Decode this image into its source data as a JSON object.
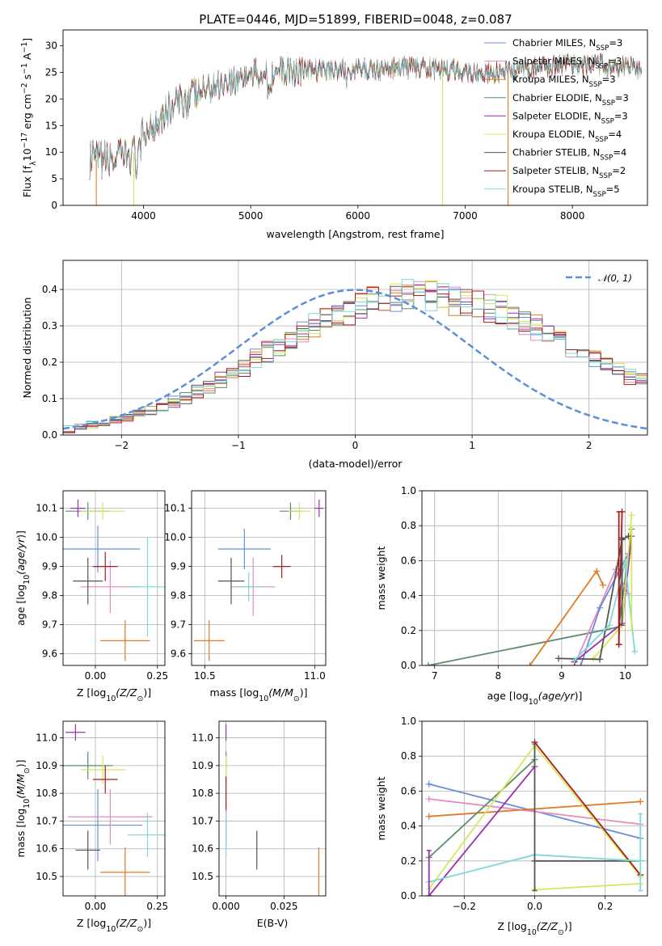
{
  "title": "PLATE=0446, MJD=51899, FIBERID=0048, z=0.087",
  "colors": {
    "chabrier_miles": "#6a8ed8",
    "salpeter_miles": "#e48cbc",
    "kroupa_miles": "#e07b28",
    "chabrier_elodie": "#5e8a6a",
    "salpeter_elodie": "#9b30b0",
    "kroupa_elodie": "#d4e85a",
    "chabrier_stelib": "#555555",
    "salpeter_stelib": "#a81c1c",
    "kroupa_stelib": "#7ed8d8"
  },
  "chart_data": [
    {
      "id": "spectrum",
      "type": "line",
      "title": "PLATE=0446, MJD=51899, FIBERID=0048, z=0.087",
      "xlabel": "wavelength [Angstrom, rest frame]",
      "ylabel": "Flux [f_λ 10^-17 erg cm^-2 s^-1 A^-1]",
      "xlim": [
        3250,
        8700
      ],
      "ylim": [
        0,
        33
      ],
      "xticks": [
        4000,
        5000,
        6000,
        7000,
        8000
      ],
      "yticks": [
        0,
        5,
        10,
        15,
        20,
        25,
        30
      ],
      "legend_position": "right",
      "continuum": {
        "x": [
          3500,
          3700,
          3900,
          4000,
          4200,
          4400,
          4600,
          4800,
          5000,
          5200,
          5400,
          5600,
          5800,
          6000,
          6200,
          6400,
          6600,
          6800,
          7000,
          7200,
          7400,
          7600,
          7800,
          8000,
          8200,
          8400,
          8600
        ],
        "y": [
          8.5,
          8.5,
          9.5,
          13.5,
          17.5,
          20.0,
          22.0,
          23.5,
          24.5,
          25.0,
          25.3,
          25.5,
          25.6,
          25.5,
          25.6,
          25.8,
          25.8,
          25.6,
          25.2,
          24.8,
          25.0,
          25.8,
          26.2,
          26.4,
          26.5,
          26.2,
          25.8
        ]
      },
      "series": [
        {
          "name": "Chabrier MILES, N_SSP=3",
          "legend": [
            "Chabrier MILES, N",
            "SSP",
            "=3"
          ],
          "color": "#6a8ed8"
        },
        {
          "name": "Salpeter MILES, N_SSP=3",
          "legend": [
            "Salpeter MILES, N",
            "SSP",
            "=3"
          ],
          "color": "#e48cbc"
        },
        {
          "name": "Kroupa MILES, N_SSP=3",
          "legend": [
            "Kroupa MILES, N",
            "SSP",
            "=3"
          ],
          "color": "#e07b28"
        },
        {
          "name": "Chabrier ELODIE, N_SSP=3",
          "legend": [
            "Chabrier ELODIE, N",
            "SSP",
            "=3"
          ],
          "color": "#5e8a6a"
        },
        {
          "name": "Salpeter ELODIE, N_SSP=3",
          "legend": [
            "Salpeter ELODIE, N",
            "SSP",
            "=3"
          ],
          "color": "#9b30b0"
        },
        {
          "name": "Kroupa ELODIE, N_SSP=4",
          "legend": [
            "Kroupa ELODIE, N",
            "SSP",
            "=4"
          ],
          "color": "#d4e85a"
        },
        {
          "name": "Chabrier STELIB, N_SSP=4",
          "legend": [
            "Chabrier STELIB, N",
            "SSP",
            "=4"
          ],
          "color": "#555555"
        },
        {
          "name": "Salpeter STELIB, N_SSP=2",
          "legend": [
            "Salpeter STELIB, N",
            "SSP",
            "=2"
          ],
          "color": "#a81c1c"
        },
        {
          "name": "Kroupa STELIB, N_SSP=5",
          "legend": [
            "Kroupa STELIB, N",
            "SSP",
            "=5"
          ],
          "color": "#7ed8d8"
        }
      ],
      "drops": [
        {
          "x": 3560,
          "color": "#e07b28"
        },
        {
          "x": 3910,
          "color": "#d4e85a"
        },
        {
          "x": 6790,
          "color": "#d4e85a"
        },
        {
          "x": 7400,
          "color": "#e07b28"
        }
      ]
    },
    {
      "id": "residuals",
      "type": "histogram",
      "xlabel": "(data-model)/error",
      "ylabel": "Normed distribution",
      "xlim": [
        -2.5,
        2.5
      ],
      "ylim": [
        0,
        0.48
      ],
      "xticks": [
        -2,
        -1,
        0,
        1,
        2
      ],
      "yticks": [
        0.0,
        0.1,
        0.2,
        0.3,
        0.4
      ],
      "grid": true,
      "legend_position": "top-right",
      "legend": "N(0,1)",
      "gaussian_color": "#5b8fd8",
      "bin_width": 0.1,
      "bin_start": -2.5,
      "base": [
        0.018,
        0.022,
        0.027,
        0.033,
        0.04,
        0.047,
        0.056,
        0.066,
        0.078,
        0.09,
        0.104,
        0.119,
        0.136,
        0.153,
        0.171,
        0.19,
        0.209,
        0.228,
        0.247,
        0.266,
        0.284,
        0.301,
        0.317,
        0.332,
        0.345,
        0.356,
        0.366,
        0.374,
        0.38,
        0.384,
        0.386,
        0.385,
        0.382,
        0.377,
        0.37,
        0.361,
        0.35,
        0.338,
        0.325,
        0.311,
        0.296,
        0.28,
        0.263,
        0.246,
        0.229,
        0.212,
        0.195,
        0.179,
        0.163,
        0.148,
        0.134,
        0.12,
        0.107,
        0.096,
        0.085,
        0.075,
        0.066,
        0.058,
        0.051,
        0.045
      ]
    },
    {
      "id": "age_vs_Z",
      "type": "errorbar",
      "xlabel": "Z [log10(Z/Z⊙)]",
      "ylabel": "age  [log10(age/yr)]",
      "xlim": [
        -0.13,
        0.28
      ],
      "ylim": [
        9.56,
        10.16
      ],
      "xticks": [
        0.0,
        0.25
      ],
      "xticklabels": [
        "0.00",
        "0.25"
      ],
      "yticks": [
        9.6,
        9.7,
        9.8,
        9.9,
        10.0,
        10.1
      ],
      "points": [
        {
          "x": 0.01,
          "y": 9.96,
          "xe": 0.17,
          "ye": 0.08,
          "color": "#6a8ed8"
        },
        {
          "x": 0.06,
          "y": 9.83,
          "xe": 0.12,
          "ye": 0.09,
          "color": "#e48cbc"
        },
        {
          "x": 0.12,
          "y": 9.645,
          "xe": 0.1,
          "ye": 0.07,
          "color": "#e07b28"
        },
        {
          "x": -0.03,
          "y": 10.09,
          "xe": 0.09,
          "ye": 0.03,
          "color": "#5e8a6a"
        },
        {
          "x": -0.07,
          "y": 10.1,
          "xe": 0.03,
          "ye": 0.03,
          "color": "#9b30b0"
        },
        {
          "x": 0.03,
          "y": 10.09,
          "xe": 0.09,
          "ye": 0.03,
          "color": "#d4e85a"
        },
        {
          "x": -0.03,
          "y": 9.85,
          "xe": 0.06,
          "ye": 0.08,
          "color": "#555555"
        },
        {
          "x": 0.04,
          "y": 9.9,
          "xe": 0.05,
          "ye": 0.05,
          "color": "#a81c1c"
        },
        {
          "x": 0.21,
          "y": 9.83,
          "xe": 0.08,
          "ye": 0.17,
          "color": "#7ed8d8"
        }
      ]
    },
    {
      "id": "age_vs_mass",
      "type": "errorbar",
      "xlabel": "mass [log10(M/M⊙)]",
      "ylabel": "",
      "xlim": [
        10.44,
        11.05
      ],
      "ylim": [
        9.56,
        10.16
      ],
      "xticks": [
        10.5,
        11.0
      ],
      "xticklabels": [
        "10.5",
        "11.0"
      ],
      "yticks": [
        9.6,
        9.7,
        9.8,
        9.9,
        10.0,
        10.1
      ],
      "points": [
        {
          "x": 10.68,
          "y": 9.96,
          "xe": 0.12,
          "ye": 0.07,
          "color": "#6a8ed8"
        },
        {
          "x": 10.72,
          "y": 9.83,
          "xe": 0.1,
          "ye": 0.1,
          "color": "#e48cbc"
        },
        {
          "x": 10.52,
          "y": 9.645,
          "xe": 0.07,
          "ye": 0.07,
          "color": "#e07b28"
        },
        {
          "x": 10.89,
          "y": 10.09,
          "xe": 0.05,
          "ye": 0.03,
          "color": "#5e8a6a"
        },
        {
          "x": 11.02,
          "y": 10.1,
          "xe": 0.02,
          "ye": 0.03,
          "color": "#9b30b0"
        },
        {
          "x": 10.93,
          "y": 10.09,
          "xe": 0.05,
          "ye": 0.03,
          "color": "#d4e85a"
        },
        {
          "x": 10.62,
          "y": 9.85,
          "xe": 0.06,
          "ye": 0.08,
          "color": "#555555"
        },
        {
          "x": 10.85,
          "y": 9.9,
          "xe": 0.04,
          "ye": 0.04,
          "color": "#a81c1c"
        },
        {
          "x": 10.7,
          "y": 9.83,
          "xe": 0.06,
          "ye": 0.05,
          "color": "#7ed8d8"
        }
      ]
    },
    {
      "id": "mass_weight_vs_age",
      "type": "line",
      "xlabel": "age  [log10(age/yr)]",
      "ylabel": "mass weight",
      "xlim": [
        6.8,
        10.35
      ],
      "ylim": [
        0,
        1.0
      ],
      "xticks": [
        7,
        8,
        9,
        10
      ],
      "yticks": [
        0.0,
        0.2,
        0.4,
        0.6,
        0.8,
        1.0
      ],
      "yticklabels": [
        "0.0",
        "0.2",
        "0.4",
        "0.6",
        "0.8",
        "1.0"
      ],
      "series": [
        {
          "color": "#5e8a6a",
          "x": [
            6.9,
            9.9,
            10.1
          ],
          "y": [
            0.0,
            0.22,
            0.78
          ]
        },
        {
          "color": "#e07b28",
          "x": [
            8.5,
            9.55,
            9.65
          ],
          "y": [
            0.0,
            0.54,
            0.46
          ]
        },
        {
          "color": "#e48cbc",
          "x": [
            9.2,
            9.85,
            10.05
          ],
          "y": [
            0.0,
            0.55,
            0.41
          ]
        },
        {
          "color": "#6a8ed8",
          "x": [
            9.3,
            9.6,
            10.05
          ],
          "y": [
            0.0,
            0.33,
            0.64
          ]
        },
        {
          "color": "#9b30b0",
          "x": [
            9.2,
            9.95,
            10.1
          ],
          "y": [
            0.02,
            0.24,
            0.74
          ]
        },
        {
          "color": "#d4e85a",
          "x": [
            9.5,
            9.95,
            10.1
          ],
          "y": [
            0.04,
            0.23,
            0.86
          ]
        },
        {
          "color": "#555555",
          "x": [
            8.95,
            9.6,
            9.95,
            10.05
          ],
          "y": [
            0.04,
            0.035,
            0.72,
            0.74
          ]
        },
        {
          "color": "#a81c1c",
          "x": [
            9.9,
            9.95
          ],
          "y": [
            0.12,
            0.88
          ]
        },
        {
          "color": "#7ed8d8",
          "x": [
            9.2,
            9.75,
            10.0,
            10.15
          ],
          "y": [
            0.03,
            0.23,
            0.59,
            0.08
          ]
        }
      ],
      "errorbars": [
        {
          "x": 9.9,
          "y": 0.5,
          "ye": 0.38,
          "color": "#a81c1c"
        },
        {
          "x": 10.1,
          "y": 0.5,
          "ye": 0.3,
          "color": "#d4e85a"
        },
        {
          "x": 9.95,
          "y": 0.48,
          "ye": 0.25,
          "color": "#555555"
        }
      ]
    },
    {
      "id": "mass_vs_Z",
      "type": "errorbar",
      "xlabel": "Z [log10(Z/Z⊙)]",
      "ylabel": "mass [log10(M/M⊙)]",
      "xlim": [
        -0.13,
        0.28
      ],
      "ylim": [
        10.43,
        11.06
      ],
      "xticks": [
        0.0,
        0.25
      ],
      "xticklabels": [
        "0.00",
        "0.25"
      ],
      "yticks": [
        10.5,
        10.6,
        10.7,
        10.8,
        10.9,
        11.0
      ],
      "points": [
        {
          "x": 0.01,
          "y": 10.685,
          "xe": 0.18,
          "ye": 0.13,
          "color": "#6a8ed8"
        },
        {
          "x": 0.06,
          "y": 10.715,
          "xe": 0.17,
          "ye": 0.1,
          "color": "#e48cbc"
        },
        {
          "x": 0.12,
          "y": 10.515,
          "xe": 0.1,
          "ye": 0.09,
          "color": "#e07b28"
        },
        {
          "x": -0.03,
          "y": 10.9,
          "xe": 0.1,
          "ye": 0.05,
          "color": "#5e8a6a"
        },
        {
          "x": -0.08,
          "y": 11.02,
          "xe": 0.04,
          "ye": 0.03,
          "color": "#9b30b0"
        },
        {
          "x": 0.03,
          "y": 10.885,
          "xe": 0.09,
          "ye": 0.05,
          "color": "#d4e85a"
        },
        {
          "x": -0.03,
          "y": 10.595,
          "xe": 0.05,
          "ye": 0.07,
          "color": "#555555"
        },
        {
          "x": 0.04,
          "y": 10.85,
          "xe": 0.05,
          "ye": 0.05,
          "color": "#a81c1c"
        },
        {
          "x": 0.21,
          "y": 10.65,
          "xe": 0.08,
          "ye": 0.08,
          "color": "#7ed8d8"
        }
      ]
    },
    {
      "id": "mass_vs_ebv",
      "type": "errorbar",
      "xlabel": "E(B-V)",
      "ylabel": "",
      "xlim": [
        -0.003,
        0.043
      ],
      "ylim": [
        10.43,
        11.06
      ],
      "xticks": [
        0.0,
        0.025
      ],
      "xticklabels": [
        "0.000",
        "0.025"
      ],
      "yticks": [
        10.5,
        10.6,
        10.7,
        10.8,
        10.9,
        11.0
      ],
      "yticklabels": [
        "10.5",
        "10.6",
        "10.7",
        "10.8",
        "10.9",
        "11.0"
      ],
      "points": [
        {
          "x": 0.0,
          "y": 10.685,
          "xe": 0.0,
          "ye": 0.08,
          "color": "#6a8ed8"
        },
        {
          "x": 0.0,
          "y": 10.715,
          "xe": 0.0,
          "ye": 0.09,
          "color": "#e48cbc"
        },
        {
          "x": 0.04,
          "y": 10.515,
          "xe": 0.0,
          "ye": 0.09,
          "color": "#e07b28"
        },
        {
          "x": 0.0,
          "y": 10.9,
          "xe": 0.0,
          "ye": 0.05,
          "color": "#5e8a6a"
        },
        {
          "x": 0.0,
          "y": 11.02,
          "xe": 0.0,
          "ye": 0.03,
          "color": "#9b30b0"
        },
        {
          "x": 0.0,
          "y": 10.885,
          "xe": 0.0,
          "ye": 0.05,
          "color": "#d4e85a"
        },
        {
          "x": 0.0133,
          "y": 10.595,
          "xe": 0.0,
          "ye": 0.07,
          "color": "#555555"
        },
        {
          "x": 0.0,
          "y": 10.8,
          "xe": 0.0,
          "ye": 0.06,
          "color": "#a81c1c"
        },
        {
          "x": 0.0,
          "y": 10.65,
          "xe": 0.0,
          "ye": 0.08,
          "color": "#7ed8d8"
        }
      ]
    },
    {
      "id": "mass_weight_vs_Z",
      "type": "line",
      "xlabel": "Z [log10(Z/Z⊙)]",
      "ylabel": "mass weight",
      "xlim": [
        -0.32,
        0.32
      ],
      "ylim": [
        0,
        1.0
      ],
      "xticks": [
        -0.2,
        0.0,
        0.2
      ],
      "xticklabels": [
        "−0.2",
        "0.0",
        "0.2"
      ],
      "yticks": [
        0.0,
        0.2,
        0.4,
        0.6,
        0.8,
        1.0
      ],
      "yticklabels": [
        "0.0",
        "0.2",
        "0.4",
        "0.6",
        "0.8",
        "1.0"
      ],
      "series": [
        {
          "color": "#6a8ed8",
          "x": [
            -0.3,
            0.3
          ],
          "y": [
            0.64,
            0.33
          ]
        },
        {
          "color": "#e48cbc",
          "x": [
            -0.3,
            0.3
          ],
          "y": [
            0.555,
            0.41
          ]
        },
        {
          "color": "#e07b28",
          "x": [
            -0.3,
            0.3
          ],
          "y": [
            0.455,
            0.54
          ]
        },
        {
          "color": "#5e8a6a",
          "x": [
            -0.3,
            0.0
          ],
          "y": [
            0.22,
            0.78
          ]
        },
        {
          "color": "#9b30b0",
          "x": [
            -0.3,
            0.0
          ],
          "y": [
            0.0,
            0.74
          ]
        },
        {
          "color": "#d4e85a",
          "x": [
            -0.3,
            0.0,
            0.3
          ],
          "y": [
            0.04,
            0.86,
            0.11
          ]
        },
        {
          "color": "#d4e85a",
          "x": [
            0.0,
            0.3
          ],
          "y": [
            0.035,
            0.07
          ]
        },
        {
          "color": "#555555",
          "x": [
            0.0,
            0.3
          ],
          "y": [
            0.2,
            0.2
          ]
        },
        {
          "color": "#a81c1c",
          "x": [
            0.0,
            0.3
          ],
          "y": [
            0.88,
            0.12
          ]
        },
        {
          "color": "#7ed8d8",
          "x": [
            -0.3,
            0.0,
            0.3
          ],
          "y": [
            0.08,
            0.235,
            0.2
          ]
        }
      ],
      "errorbars": [
        {
          "x": -0.3,
          "y": 0.13,
          "ye": 0.13,
          "color": "#9b30b0"
        },
        {
          "x": 0.0,
          "y": 0.45,
          "ye": 0.42,
          "color": "#555555"
        },
        {
          "x": 0.3,
          "y": 0.25,
          "ye": 0.22,
          "color": "#7ed8d8"
        }
      ]
    }
  ]
}
